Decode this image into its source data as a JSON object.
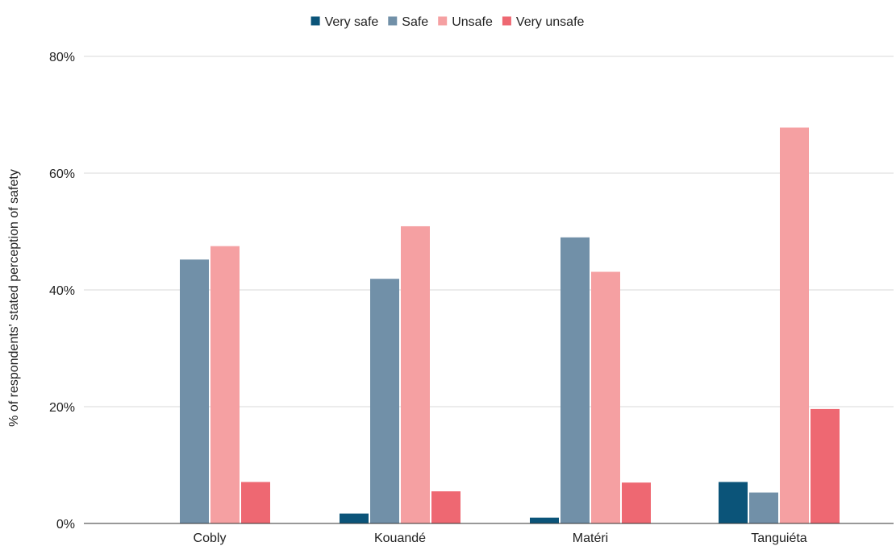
{
  "chart_data": {
    "type": "bar",
    "title": "",
    "xlabel": "",
    "ylabel": "% of respondents' stated perception of safety",
    "categories": [
      "Cobly",
      "Kouandé",
      "Matéri",
      "Tanguiéta"
    ],
    "ylim": [
      0,
      80
    ],
    "yticks": [
      0,
      20,
      40,
      60,
      80
    ],
    "ytick_labels": [
      "0%",
      "20%",
      "40%",
      "60%",
      "80%"
    ],
    "grid": true,
    "legend_position": "top-center",
    "series": [
      {
        "name": "Very safe",
        "color": "#0b5479",
        "values": [
          0,
          1.7,
          1.0,
          7.1
        ]
      },
      {
        "name": "Safe",
        "color": "#7190a8",
        "values": [
          45.2,
          41.9,
          49.0,
          5.3
        ]
      },
      {
        "name": "Unsafe",
        "color": "#f5a0a2",
        "values": [
          47.5,
          50.9,
          43.1,
          67.8
        ]
      },
      {
        "name": "Very unsafe",
        "color": "#ee6872",
        "values": [
          7.1,
          5.5,
          7.0,
          19.6
        ]
      }
    ]
  }
}
